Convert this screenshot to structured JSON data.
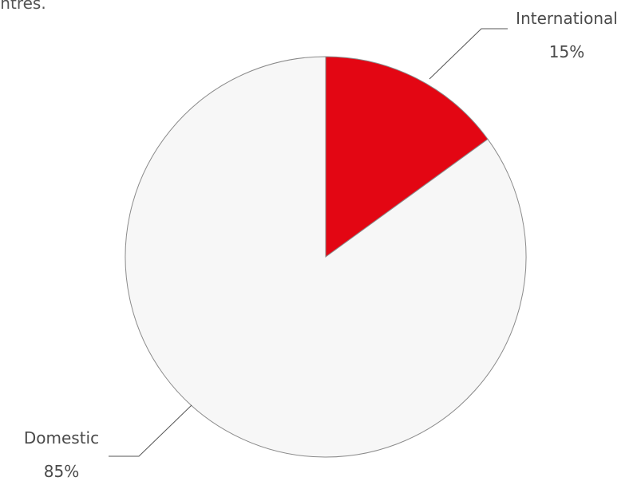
{
  "intro_text_fragment": "entres.",
  "chart_data": {
    "type": "pie",
    "slices": [
      {
        "label": "International",
        "value": 15,
        "value_label": "15%",
        "color": "#e30613"
      },
      {
        "label": "Domestic",
        "value": 85,
        "value_label": "85%",
        "color": "#f7f7f7"
      }
    ],
    "start_angle_deg": 0,
    "direction": "clockwise",
    "outline_color": "#8a8a8a",
    "leader_line_color": "#555555"
  }
}
